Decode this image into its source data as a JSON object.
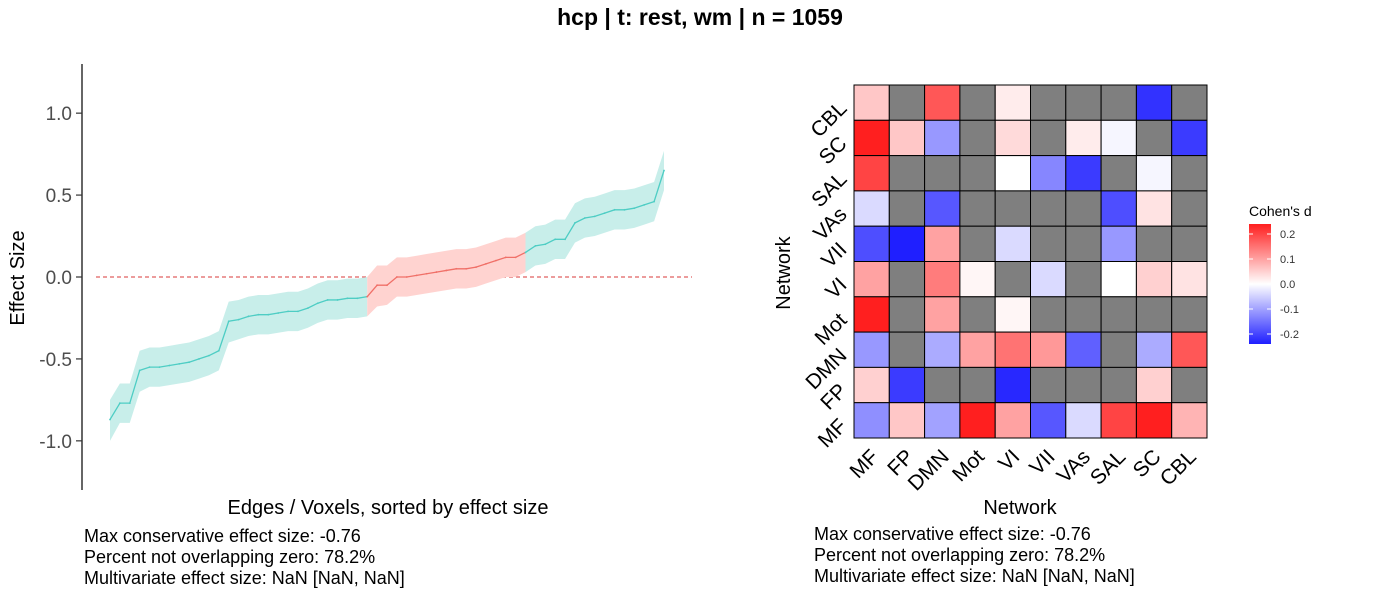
{
  "title": "hcp | t: rest, wm | n = 1059",
  "colors": {
    "ci_positive_fill": "#c8eeea",
    "line_positive": "#4ecdc4",
    "ci_overlap_fill": "#ffd3d0",
    "line_overlap": "#f07068",
    "zero_line": "#e06060",
    "na_cell": "#7f7f7f",
    "cell_border": "#000000"
  },
  "chart_data": [
    {
      "type": "line",
      "title": "",
      "xlabel": "Edges / Voxels, sorted by effect size",
      "ylabel": "Effect Size",
      "ylim": [
        -1.3,
        1.3
      ],
      "yticks": [
        "-1.0",
        "-0.5",
        "0.0",
        "0.5",
        "1.0"
      ],
      "reference_line": 0.0,
      "grid": false,
      "series": [
        {
          "values": [
            -0.87,
            -0.77,
            -0.77,
            -0.57,
            -0.55,
            -0.55,
            -0.54,
            -0.53,
            -0.52,
            -0.5,
            -0.48,
            -0.45,
            -0.27,
            -0.26,
            -0.24,
            -0.23,
            -0.23,
            -0.22,
            -0.21,
            -0.21,
            -0.19,
            -0.16,
            -0.14,
            -0.14,
            -0.13,
            -0.13,
            -0.12,
            -0.05,
            -0.05,
            0.0,
            0.0,
            0.01,
            0.02,
            0.03,
            0.04,
            0.05,
            0.05,
            0.06,
            0.08,
            0.1,
            0.12,
            0.12,
            0.15,
            0.19,
            0.2,
            0.23,
            0.23,
            0.33,
            0.36,
            0.37,
            0.39,
            0.41,
            0.41,
            0.42,
            0.44,
            0.46,
            0.65
          ],
          "ci_lower": [
            -1.0,
            -0.89,
            -0.89,
            -0.7,
            -0.67,
            -0.67,
            -0.66,
            -0.65,
            -0.64,
            -0.62,
            -0.6,
            -0.57,
            -0.4,
            -0.38,
            -0.36,
            -0.35,
            -0.35,
            -0.34,
            -0.33,
            -0.33,
            -0.31,
            -0.28,
            -0.26,
            -0.26,
            -0.25,
            -0.25,
            -0.24,
            -0.18,
            -0.17,
            -0.12,
            -0.12,
            -0.11,
            -0.1,
            -0.09,
            -0.08,
            -0.07,
            -0.07,
            -0.06,
            -0.04,
            -0.02,
            0.0,
            0.0,
            0.03,
            0.07,
            0.08,
            0.11,
            0.11,
            0.21,
            0.24,
            0.25,
            0.27,
            0.29,
            0.29,
            0.3,
            0.32,
            0.34,
            0.53
          ],
          "ci_upper": [
            -0.75,
            -0.65,
            -0.65,
            -0.45,
            -0.43,
            -0.43,
            -0.42,
            -0.41,
            -0.4,
            -0.38,
            -0.36,
            -0.33,
            -0.15,
            -0.14,
            -0.12,
            -0.11,
            -0.11,
            -0.1,
            -0.09,
            -0.09,
            -0.07,
            -0.04,
            -0.02,
            -0.02,
            -0.01,
            -0.01,
            0.0,
            0.07,
            0.07,
            0.12,
            0.12,
            0.13,
            0.14,
            0.15,
            0.16,
            0.17,
            0.17,
            0.18,
            0.2,
            0.22,
            0.24,
            0.24,
            0.27,
            0.31,
            0.32,
            0.35,
            0.35,
            0.45,
            0.48,
            0.49,
            0.51,
            0.53,
            0.53,
            0.54,
            0.56,
            0.58,
            0.77
          ]
        }
      ],
      "annotations": [
        "Max conservative effect size: -0.76",
        "Percent not overlapping zero: 78.2%",
        "Multivariate effect size: NaN [NaN, NaN]"
      ]
    },
    {
      "type": "heatmap",
      "title": "",
      "xlabel": "Network",
      "ylabel": "Network",
      "categories": [
        "MF",
        "FP",
        "DMN",
        "Mot",
        "VI",
        "VII",
        "VAs",
        "SAL",
        "SC",
        "CBL"
      ],
      "legend_title": "Cohen's d",
      "legend_ticks": [
        "0.2",
        "0.1",
        "0.0",
        "-0.1",
        "-0.2"
      ],
      "legend_range": [
        -0.24,
        0.24
      ],
      "legend_position": "right",
      "rows": [
        {
          "name": "CBL",
          "values": [
            0.06,
            null,
            0.18,
            null,
            0.02,
            null,
            null,
            null,
            -0.22,
            null
          ]
        },
        {
          "name": "SC",
          "values": [
            0.24,
            0.06,
            -0.11,
            null,
            0.04,
            null,
            0.02,
            -0.01,
            null,
            -0.21
          ]
        },
        {
          "name": "SAL",
          "values": [
            0.2,
            null,
            null,
            null,
            0.0,
            -0.13,
            -0.21,
            null,
            -0.01,
            null
          ]
        },
        {
          "name": "VAs",
          "values": [
            -0.04,
            null,
            -0.18,
            null,
            null,
            null,
            null,
            -0.19,
            0.03,
            null
          ]
        },
        {
          "name": "VII",
          "values": [
            -0.19,
            -0.24,
            0.1,
            null,
            -0.04,
            null,
            null,
            -0.11,
            null,
            null
          ]
        },
        {
          "name": "VI",
          "values": [
            0.1,
            null,
            0.14,
            0.01,
            null,
            -0.04,
            null,
            0.0,
            0.05,
            0.03
          ]
        },
        {
          "name": "Mot",
          "values": [
            0.25,
            null,
            0.1,
            null,
            0.01,
            null,
            null,
            null,
            null,
            null
          ]
        },
        {
          "name": "DMN",
          "values": [
            -0.11,
            null,
            -0.09,
            0.1,
            0.15,
            0.11,
            -0.17,
            null,
            -0.09,
            0.18
          ]
        },
        {
          "name": "FP",
          "values": [
            0.05,
            -0.21,
            null,
            null,
            -0.23,
            null,
            null,
            null,
            0.05,
            null
          ]
        },
        {
          "name": "MF",
          "values": [
            -0.12,
            0.06,
            -0.1,
            0.24,
            0.1,
            -0.18,
            -0.04,
            0.2,
            0.24,
            0.08
          ]
        }
      ],
      "annotations": [
        "Max conservative effect size: -0.76",
        "Percent not overlapping zero: 78.2%",
        "Multivariate effect size: NaN [NaN, NaN]"
      ]
    }
  ]
}
